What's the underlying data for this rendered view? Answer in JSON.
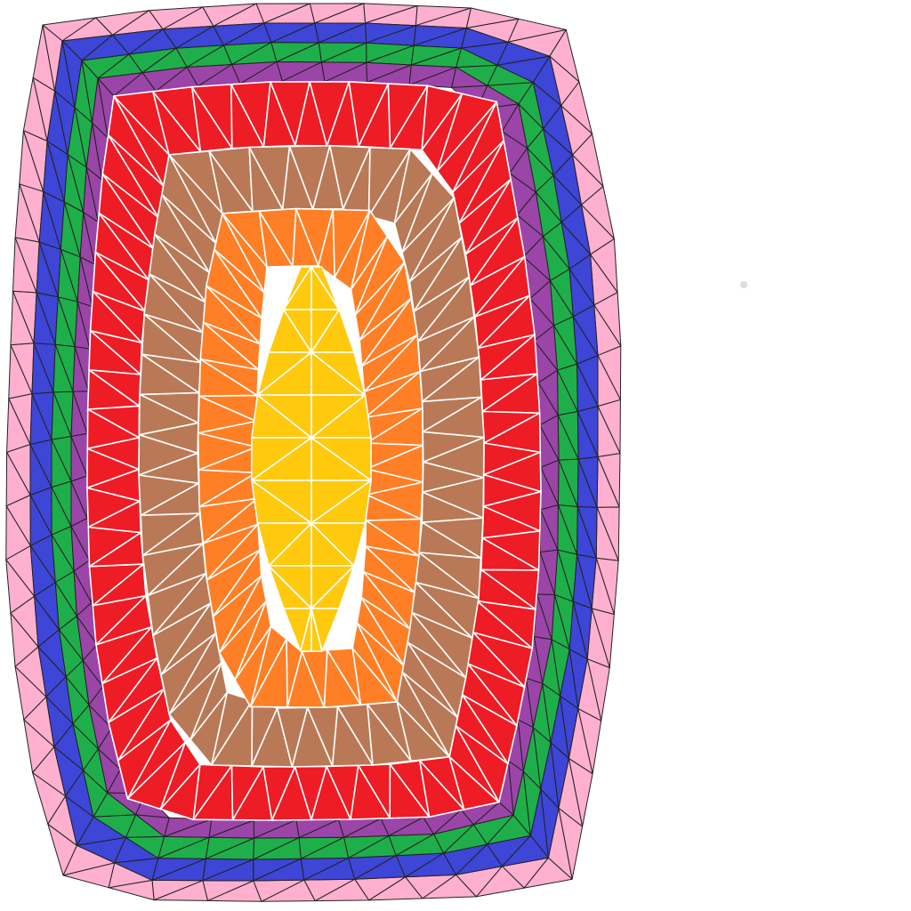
{
  "figure": {
    "type": "triangulated-concentric-rings",
    "ring_count": 7,
    "rings_outer_to_inner": [
      "pink",
      "blue",
      "green",
      "purple",
      "red",
      "brown",
      "orange"
    ],
    "core": "yellow",
    "colors": {
      "pink": "#FFB0CF",
      "blue": "#3D46D6",
      "green": "#1FAF4A",
      "purple": "#9B45A8",
      "red": "#EE1C25",
      "brown": "#B97956",
      "orange": "#FF7F26",
      "yellow": "#FFC90E",
      "edge_dark": "#222222",
      "edge_light": "#ffffff",
      "background": "#ffffff",
      "dot": "#dddddd"
    }
  }
}
